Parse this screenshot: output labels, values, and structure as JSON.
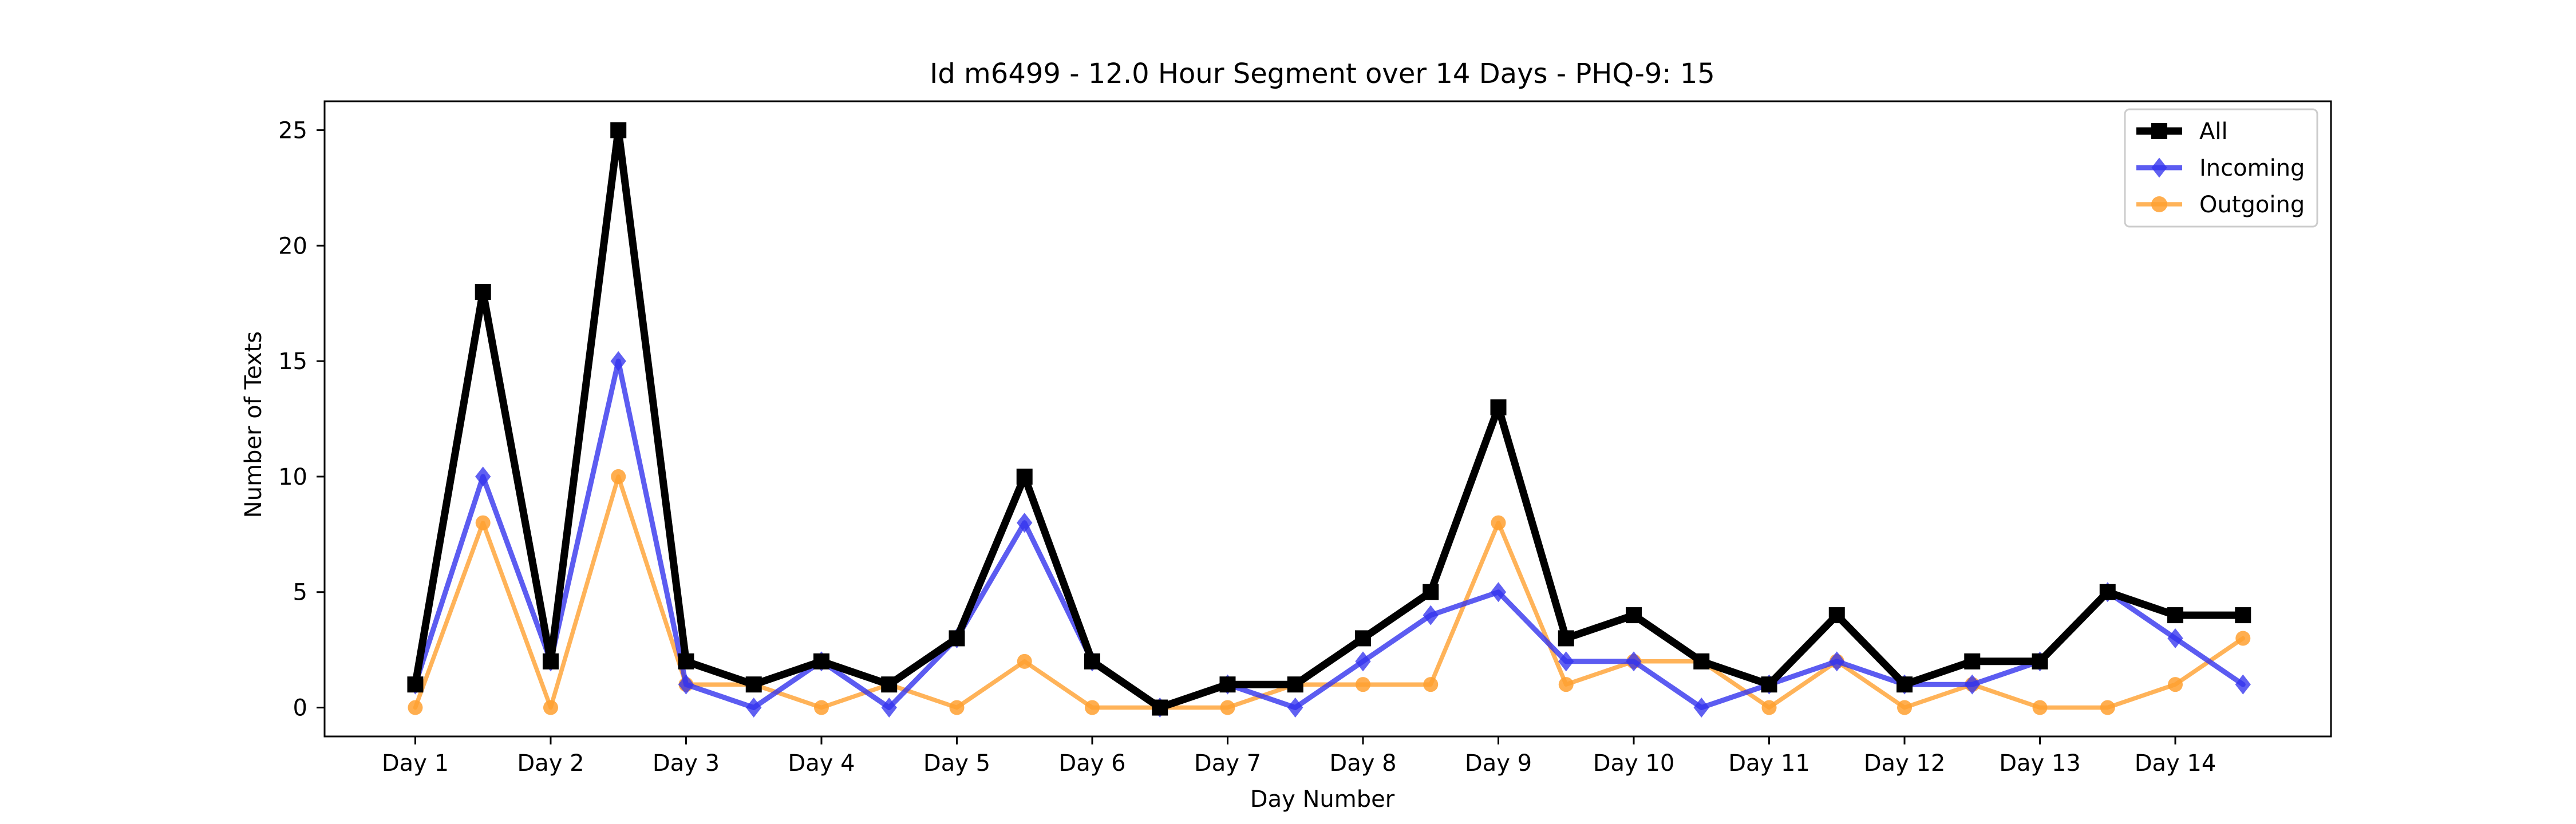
{
  "chart_data": {
    "type": "line",
    "title": "Id m6499 - 12.0 Hour Segment over 14 Days - PHQ-9: 15",
    "xlabel": "Day Number",
    "ylabel": "Number of Texts",
    "x_tick_labels": [
      "Day 1",
      "Day 2",
      "Day 3",
      "Day 4",
      "Day 5",
      "Day 6",
      "Day 7",
      "Day 8",
      "Day 9",
      "Day 10",
      "Day 11",
      "Day 12",
      "Day 13",
      "Day 14"
    ],
    "x": [
      1,
      1.5,
      2,
      2.5,
      3,
      3.5,
      4,
      4.5,
      5,
      5.5,
      6,
      6.5,
      7,
      7.5,
      8,
      8.5,
      9,
      9.5,
      10,
      10.5,
      11,
      11.5,
      12,
      12.5,
      13,
      13.5,
      14,
      14.5
    ],
    "xlim": [
      0.33,
      15.15
    ],
    "ylim": [
      -1.25,
      26.25
    ],
    "y_ticks": [
      0,
      5,
      10,
      15,
      20,
      25
    ],
    "grid": false,
    "legend_position": "top-right",
    "series": [
      {
        "name": "All",
        "color": "#000000",
        "marker": "square",
        "values": [
          1,
          18,
          2,
          25,
          2,
          1,
          2,
          1,
          3,
          10,
          2,
          0,
          1,
          1,
          3,
          5,
          13,
          3,
          4,
          2,
          1,
          4,
          1,
          2,
          2,
          5,
          4,
          4
        ]
      },
      {
        "name": "Incoming",
        "color": "#3333ee",
        "marker": "diamond",
        "values": [
          1,
          10,
          2,
          15,
          1,
          0,
          2,
          0,
          3,
          8,
          2,
          0,
          1,
          0,
          2,
          4,
          5,
          2,
          2,
          0,
          1,
          2,
          1,
          1,
          2,
          5,
          3,
          1
        ]
      },
      {
        "name": "Outgoing",
        "color": "#ffa030",
        "marker": "circle",
        "values": [
          0,
          8,
          0,
          10,
          1,
          1,
          0,
          1,
          0,
          2,
          0,
          0,
          0,
          1,
          1,
          1,
          8,
          1,
          2,
          2,
          0,
          2,
          0,
          1,
          0,
          0,
          1,
          3
        ]
      }
    ]
  }
}
